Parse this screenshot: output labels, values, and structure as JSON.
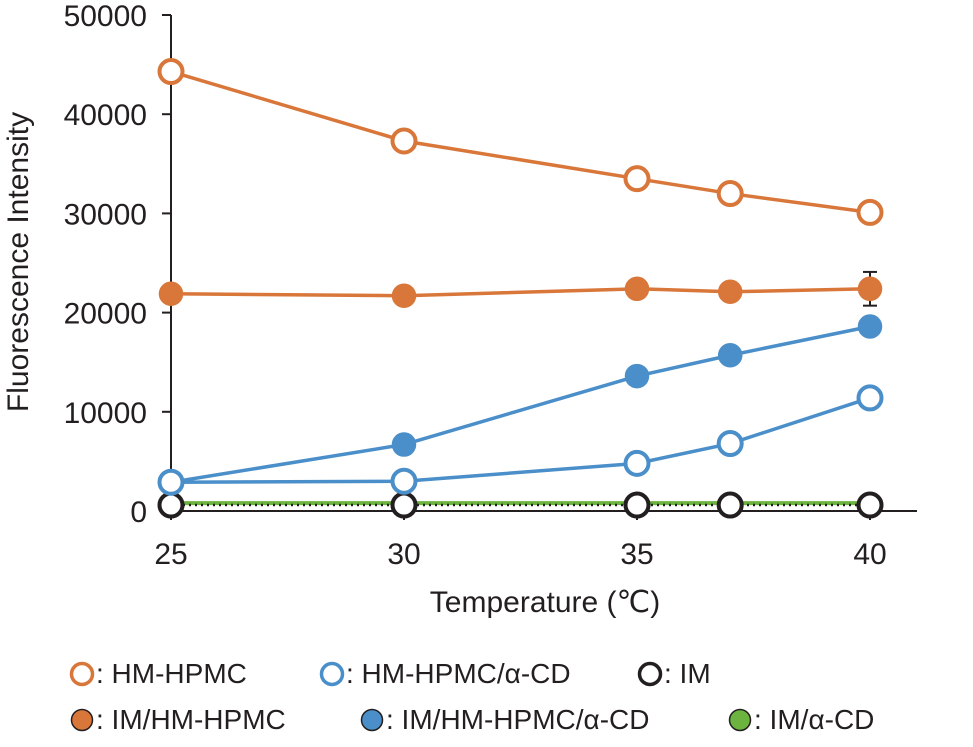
{
  "chart_data": {
    "type": "line",
    "title": "",
    "xlabel": "Temperature (℃)",
    "ylabel": "Fluorescence Intensity",
    "x_ticks": [
      "25",
      "30",
      "35",
      "40"
    ],
    "y_ticks": [
      "0",
      "10000",
      "20000",
      "30000",
      "40000",
      "50000"
    ],
    "xlim": [
      25,
      40
    ],
    "ylim": [
      0,
      50000
    ],
    "grid": false,
    "legend_placement": "bottom",
    "x": [
      25,
      30,
      35,
      37,
      40
    ],
    "series": [
      {
        "name": "HM-HPMC",
        "values": [
          44300,
          37300,
          33500,
          32000,
          30100
        ],
        "color": "#d9773a",
        "filled": false,
        "dotted": false
      },
      {
        "name": "HM-HPMC/α-CD",
        "values": [
          2900,
          3000,
          4800,
          6800,
          11400
        ],
        "color": "#4a8fc9",
        "filled": false,
        "dotted": false
      },
      {
        "name": "IM",
        "values": [
          600,
          600,
          600,
          600,
          600
        ],
        "color": "#231f20",
        "filled": false,
        "dotted": true
      },
      {
        "name": "IM/HM-HPMC",
        "values": [
          21900,
          21700,
          22400,
          22100,
          22400
        ],
        "color": "#d9773a",
        "filled": true,
        "dotted": false,
        "error_bar_at_last": 1700
      },
      {
        "name": "IM/HM-HPMC/α-CD",
        "values": [
          2900,
          6700,
          13600,
          15700,
          18600
        ],
        "color": "#4a8fc9",
        "filled": true,
        "dotted": false
      },
      {
        "name": "IM/α-CD",
        "values": [
          800,
          800,
          800,
          800,
          800
        ],
        "color": "#6db33f",
        "filled": true,
        "dotted": false
      }
    ],
    "legend_separator": ": "
  }
}
